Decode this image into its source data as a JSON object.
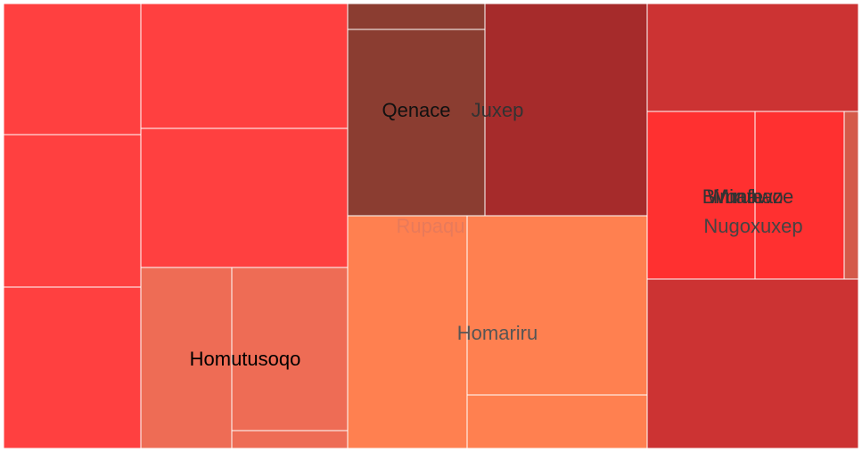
{
  "chart_data": {
    "type": "treemap",
    "title": "",
    "groups": [
      {
        "name": "",
        "color": "#ff4040",
        "tiles": [
          310,
          170,
          210,
          100,
          100,
          60,
          140
        ]
      },
      {
        "name": "Homutusoqo",
        "color": "#ee6c55",
        "tiles": [
          30,
          21
        ]
      },
      {
        "name": "Qenace",
        "color": "#8b3d31",
        "label_color": "#111111",
        "tiles": [
          28,
          5
        ]
      },
      {
        "name": "Juxep",
        "color": "#a62b2b",
        "label_color": "#333333",
        "tiles": [
          46
        ]
      },
      {
        "name": "Rupaqu",
        "color": "#ff8050",
        "label_color": "#e87a5a",
        "tiles": []
      },
      {
        "name": "Homariru",
        "color": "#ff8050",
        "label_color": "#555555",
        "tiles": [
          50,
          51,
          17
        ]
      },
      {
        "name": "Bimafe",
        "color": "#cc3333",
        "label_color": "#333333",
        "tiles": [
          30,
          50
        ]
      },
      {
        "name": "Wunawo",
        "color": "#ff3030",
        "label_color": "#333333",
        "tiles": [
          19
        ]
      },
      {
        "name": "Miruhaze",
        "color": "#ff3030",
        "label_color": "#333333",
        "tiles": [
          15
        ]
      },
      {
        "name": "Nugoxuxep",
        "color": "#d45a4a",
        "label_color": "#444444",
        "tiles": [
          2
        ]
      }
    ]
  }
}
